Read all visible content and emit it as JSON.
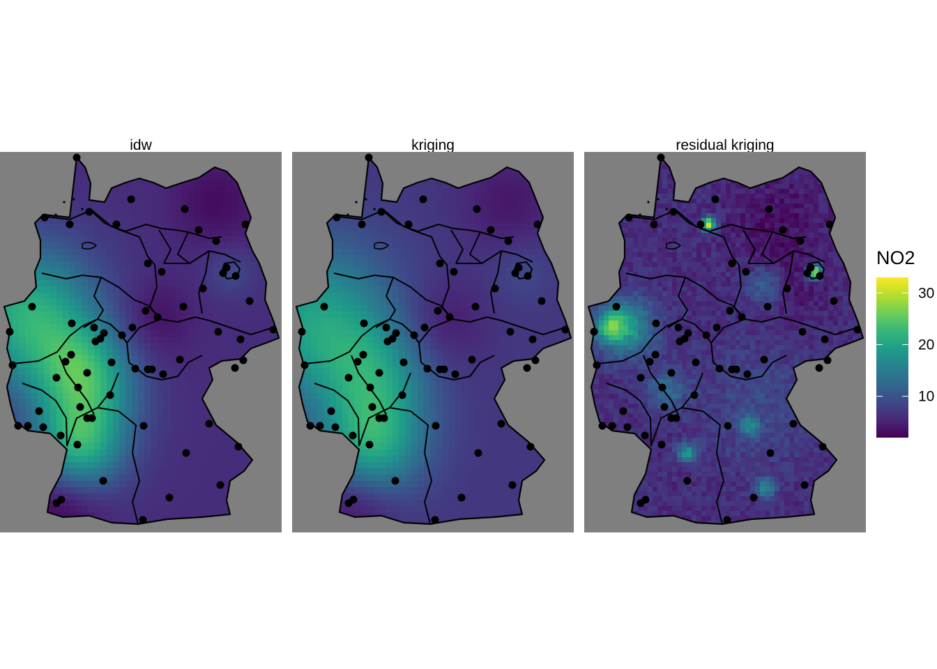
{
  "panels": [
    {
      "title": "idw",
      "style": "smooth-idw"
    },
    {
      "title": "kriging",
      "style": "smooth-kriging"
    },
    {
      "title": "residual kriging",
      "style": "pixelated"
    }
  ],
  "legend": {
    "title": "NO2",
    "ticks": [
      {
        "value": 10,
        "label": "10"
      },
      {
        "value": 20,
        "label": "20"
      },
      {
        "value": 30,
        "label": "30"
      }
    ],
    "range": [
      2,
      33
    ],
    "palette": "viridis",
    "colors": [
      "#440154",
      "#482878",
      "#3e4989",
      "#31688e",
      "#26828e",
      "#1f9e89",
      "#35b779",
      "#6ece58",
      "#b5de2b",
      "#fde725"
    ]
  },
  "colors": {
    "panel_background": "#7f7f7f",
    "border": "#000000",
    "station": "#000000"
  }
}
